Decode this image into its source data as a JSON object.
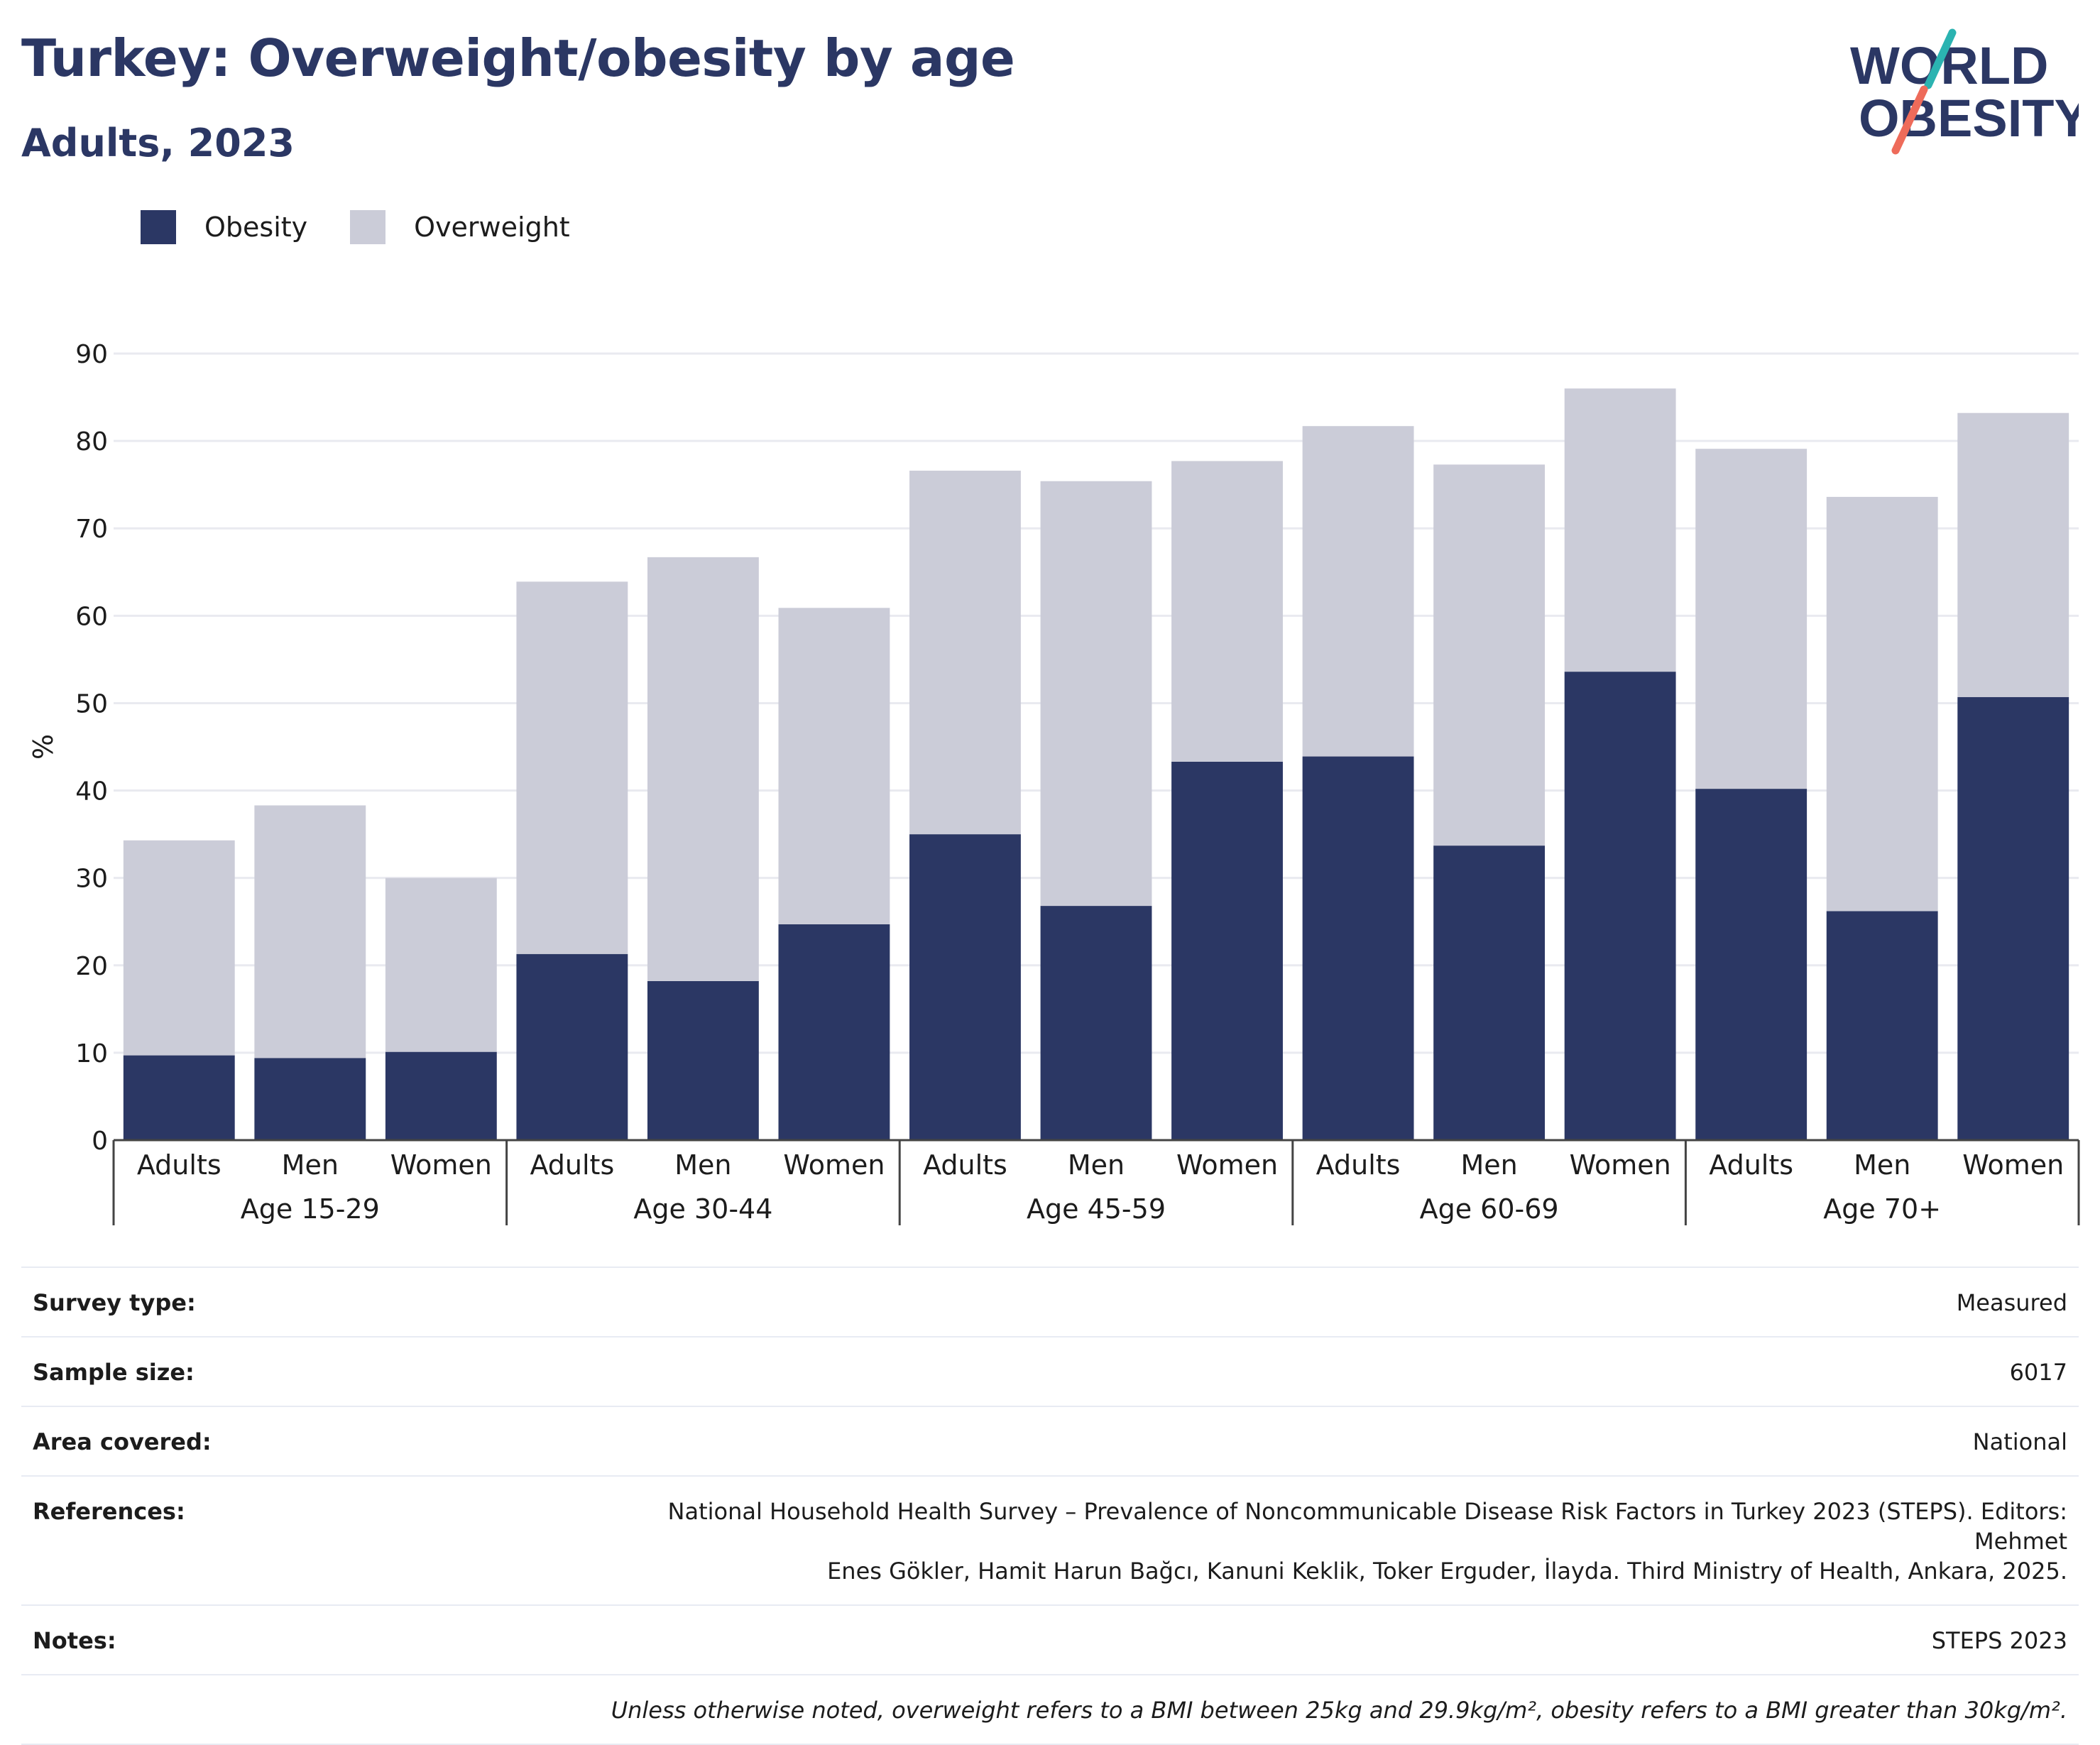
{
  "header": {
    "title": "Turkey: Overweight/obesity by age",
    "subtitle": "Adults, 2023"
  },
  "logo": {
    "line1": "WORLD",
    "line2": "OBESITY",
    "icon": "world-obesity-logo"
  },
  "legend": [
    {
      "label": "Obesity",
      "color": "#2b3764"
    },
    {
      "label": "Overweight",
      "color": "#cbccd8"
    }
  ],
  "chart_data": {
    "type": "bar",
    "stacked": true,
    "ylabel": "%",
    "ylim": [
      0,
      90
    ],
    "yticks": [
      0,
      10,
      20,
      30,
      40,
      50,
      60,
      70,
      80,
      90
    ],
    "grid": true,
    "legend_position": "top-left",
    "groups": [
      "Age 15-29",
      "Age 30-44",
      "Age 45-59",
      "Age 60-69",
      "Age 70+"
    ],
    "subcategories": [
      "Adults",
      "Men",
      "Women"
    ],
    "series": [
      {
        "name": "Obesity",
        "color": "#2b3764",
        "values": [
          9.7,
          9.4,
          10.1,
          21.3,
          18.2,
          24.7,
          35.0,
          26.8,
          43.3,
          43.9,
          33.7,
          53.6,
          40.2,
          26.2,
          50.7
        ]
      },
      {
        "name": "Overweight",
        "color": "#cbccd8",
        "values": [
          24.6,
          28.9,
          19.9,
          42.6,
          48.5,
          36.2,
          41.6,
          48.6,
          34.4,
          37.8,
          43.6,
          32.4,
          38.9,
          47.4,
          32.5
        ]
      }
    ]
  },
  "info": {
    "survey_type_label": "Survey type:",
    "survey_type": "Measured",
    "sample_size_label": "Sample size:",
    "sample_size": "6017",
    "area_label": "Area covered:",
    "area": "National",
    "references_label": "References:",
    "references_line1": "National Household Health Survey – Prevalence of Noncommunicable Disease Risk Factors in Turkey 2023 (STEPS). Editors: Mehmet",
    "references_line2": "Enes Gökler, Hamit Harun Bağcı, Kanuni Keklik, Toker Erguder, İlayda. Third Ministry of Health, Ankara, 2025.",
    "notes_label": "Notes:",
    "notes": "STEPS 2023",
    "footnote": "Unless otherwise noted, overweight refers to a BMI between 25kg and 29.9kg/m², obesity refers to a BMI greater than 30kg/m²."
  }
}
